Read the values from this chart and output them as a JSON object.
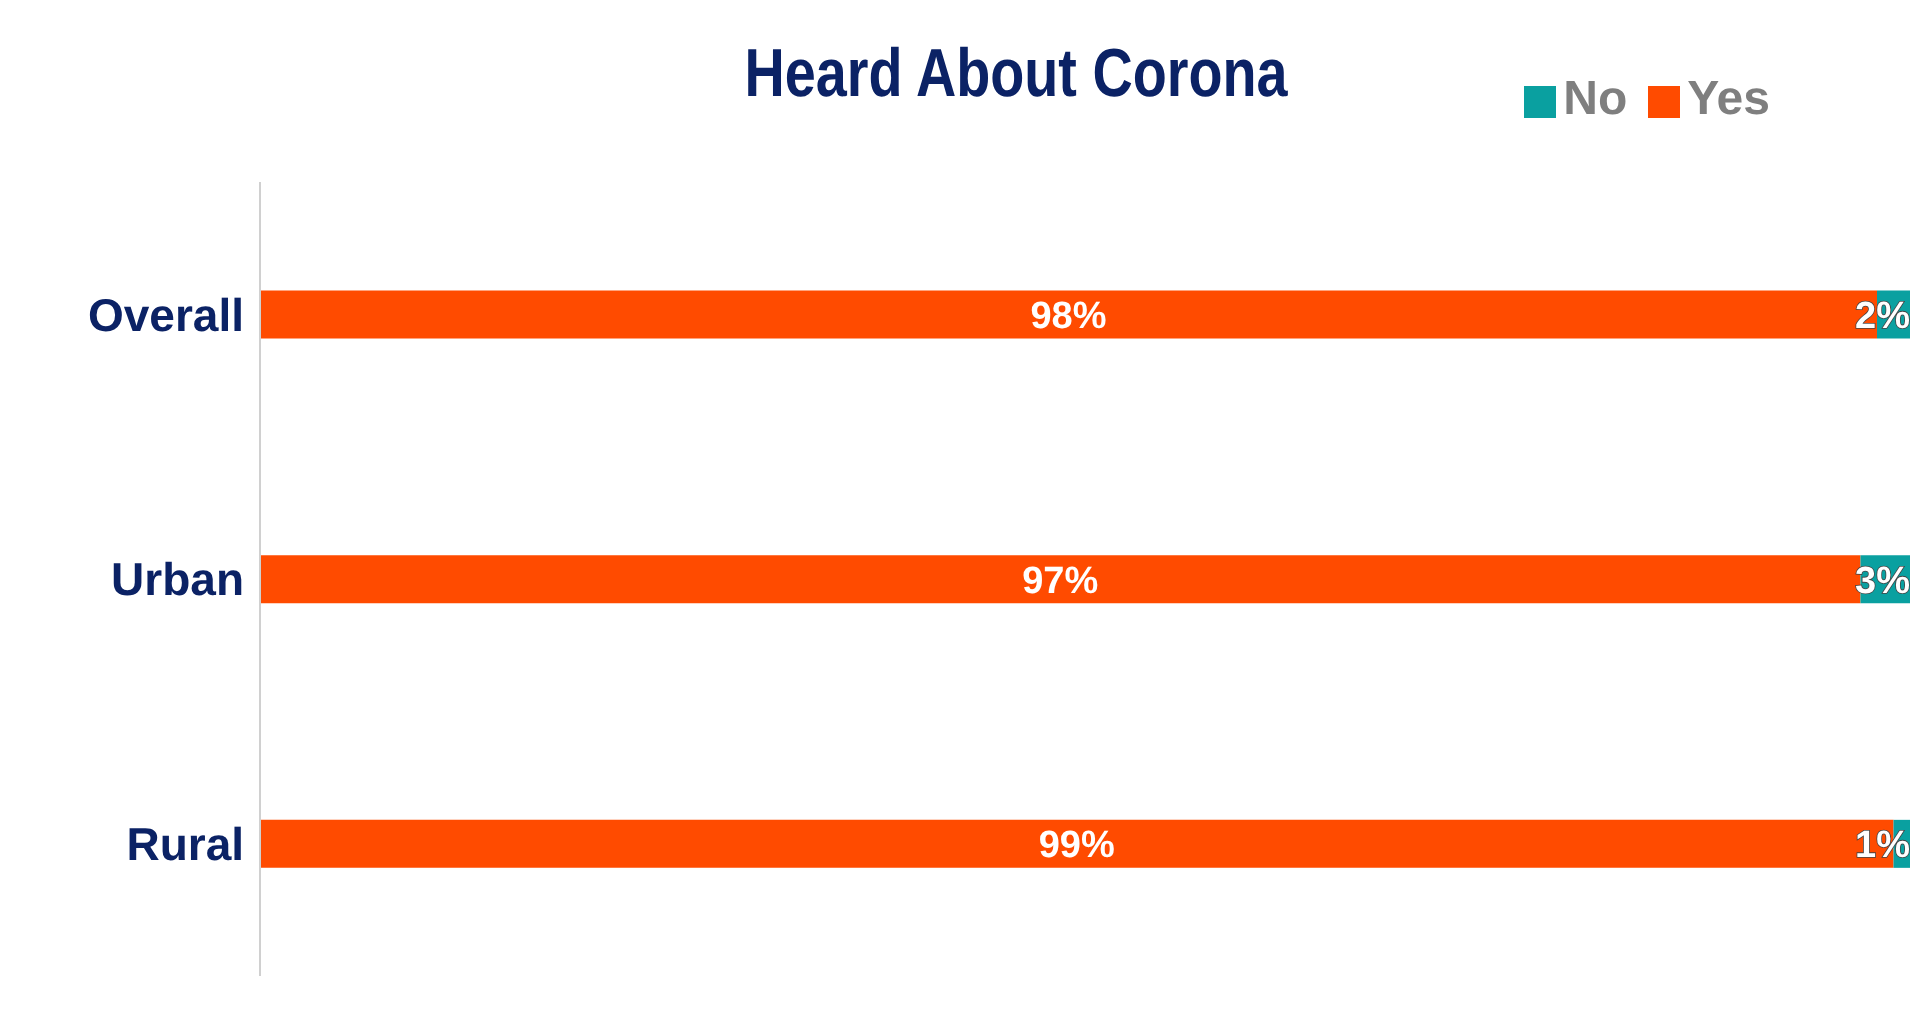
{
  "chart_data": {
    "type": "bar",
    "orientation": "horizontal",
    "stacked": true,
    "title": "Heard About Corona",
    "categories": [
      "Overall",
      "Urban",
      "Rural"
    ],
    "series": [
      {
        "name": "Yes",
        "color": "#ff4b00",
        "values": [
          98,
          97,
          99
        ],
        "value_labels": [
          "98%",
          "97%",
          "99%"
        ]
      },
      {
        "name": "No",
        "color": "#0aa0a0",
        "values": [
          2,
          3,
          1
        ],
        "value_labels": [
          "2%",
          "3%",
          "1%"
        ]
      }
    ],
    "legend": "top right",
    "grid": false
  }
}
